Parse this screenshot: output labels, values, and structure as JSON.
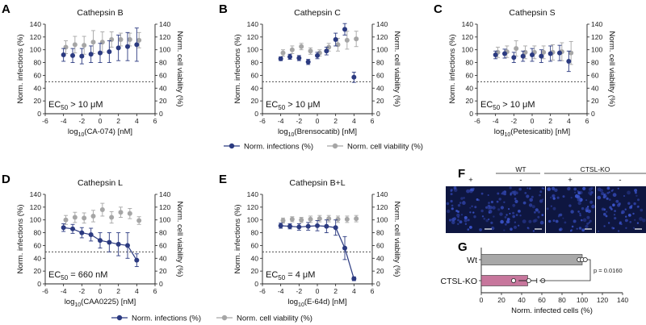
{
  "colors": {
    "infections": "#2b3a80",
    "viability": "#a6a6a6",
    "ko_bar": "#c7769c",
    "wt_bar": "#a8a8a8",
    "micro_blue": "#2c3d9c",
    "micro_bg": "#0b1030"
  },
  "legend": {
    "infections_label": "Norm. infections (%)",
    "viability_label": "Norm. cell viability (%)"
  },
  "chart_data": [
    {
      "id": "A",
      "letter": "A",
      "type": "scatter",
      "title": "Cathepsin B",
      "xlabel": "log10(CA-074) [nM]",
      "xlabel_pre": "log",
      "xlabel_sub": "10",
      "xlabel_post": "(CA-074) [nM]",
      "ylabel_left": "Norm. infections (%)",
      "ylabel_right": "Norm. cell viability (%)",
      "xlim": [
        -6,
        6
      ],
      "xticks": [
        -6,
        -4,
        -2,
        0,
        2,
        4,
        6
      ],
      "ylim": [
        0,
        140
      ],
      "yticks": [
        0,
        20,
        40,
        60,
        80,
        100,
        120,
        140
      ],
      "threshold": 50,
      "ec50_pre": "EC",
      "ec50_sub": "50",
      "ec50_post": " > 10 μM",
      "fit": false,
      "x": [
        -4,
        -3,
        -2,
        -1,
        0,
        1,
        2,
        3,
        4
      ],
      "series": [
        {
          "name": "Norm. infections (%)",
          "values": [
            92,
            91,
            90,
            93,
            95,
            97,
            103,
            105,
            108
          ],
          "errors": [
            10,
            11,
            12,
            13,
            15,
            17,
            20,
            22,
            26
          ]
        },
        {
          "name": "Norm. cell viability (%)",
          "values": [
            104,
            108,
            107,
            112,
            112,
            116,
            116,
            116,
            115
          ],
          "errors": [
            10,
            13,
            14,
            18,
            16,
            12,
            10,
            10,
            12
          ]
        }
      ]
    },
    {
      "id": "B",
      "letter": "B",
      "type": "scatter",
      "title": "Cathepsin C",
      "xlabel": "log10(Brensocatib) [nM]",
      "xlabel_pre": "log",
      "xlabel_sub": "10",
      "xlabel_post": "(Brensocatib) [nM]",
      "ylabel_left": "Norm. infections (%)",
      "ylabel_right": "Norm. cell viability (%)",
      "xlim": [
        -6,
        6
      ],
      "xticks": [
        -6,
        -4,
        -2,
        0,
        2,
        4,
        6
      ],
      "ylim": [
        0,
        140
      ],
      "yticks": [
        0,
        20,
        40,
        60,
        80,
        100,
        120,
        140
      ],
      "threshold": 50,
      "ec50_pre": "EC",
      "ec50_sub": "50",
      "ec50_post": " > 10 μM",
      "fit": false,
      "x": [
        -4,
        -3,
        -2,
        -1,
        0,
        1,
        2,
        3,
        4
      ],
      "series": [
        {
          "name": "Norm. infections (%)",
          "values": [
            86,
            89,
            87,
            81,
            91,
            98,
            116,
            132,
            57
          ],
          "errors": [
            3,
            4,
            4,
            4,
            5,
            6,
            10,
            9,
            8
          ]
        },
        {
          "name": "Norm. cell viability (%)",
          "values": [
            95,
            100,
            105,
            98,
            95,
            104,
            108,
            115,
            117
          ],
          "errors": [
            5,
            6,
            5,
            5,
            5,
            6,
            10,
            14,
            12
          ]
        }
      ]
    },
    {
      "id": "C",
      "letter": "C",
      "type": "scatter",
      "title": "Cathepsin S",
      "xlabel": "log10(Petesicatib) [nM]",
      "xlabel_pre": "log",
      "xlabel_sub": "10",
      "xlabel_post": "(Petesicatib) [nM]",
      "ylabel_left": "Norm. infections (%)",
      "ylabel_right": "Norm. cell viability (%)",
      "xlim": [
        -6,
        6
      ],
      "xticks": [
        -6,
        -4,
        -2,
        0,
        2,
        4,
        6
      ],
      "ylim": [
        0,
        140
      ],
      "yticks": [
        0,
        20,
        40,
        60,
        80,
        100,
        120,
        140
      ],
      "threshold": 50,
      "ec50_pre": "EC",
      "ec50_sub": "50",
      "ec50_post": " > 10 μM",
      "fit": false,
      "x": [
        -4,
        -3,
        -2,
        -1,
        0,
        1,
        2,
        3,
        4
      ],
      "series": [
        {
          "name": "Norm. infections (%)",
          "values": [
            92,
            94,
            88,
            90,
            92,
            90,
            94,
            95,
            82
          ],
          "errors": [
            6,
            7,
            8,
            8,
            10,
            10,
            12,
            12,
            16
          ]
        },
        {
          "name": "Norm. cell viability (%)",
          "values": [
            96,
            97,
            102,
            96,
            96,
            96,
            96,
            97,
            95
          ],
          "errors": [
            8,
            9,
            12,
            10,
            10,
            10,
            12,
            14,
            18
          ]
        }
      ]
    },
    {
      "id": "D",
      "letter": "D",
      "type": "line",
      "title": "Cathepsin L",
      "xlabel": "log10(CAA0225) [nM]",
      "xlabel_pre": "log",
      "xlabel_sub": "10",
      "xlabel_post": "(CAA0225) [nM]",
      "ylabel_left": "Norm. infections (%)",
      "ylabel_right": "Norm. cell viability (%)",
      "xlim": [
        -6,
        6
      ],
      "xticks": [
        -6,
        -4,
        -2,
        0,
        2,
        4,
        6
      ],
      "ylim": [
        0,
        140
      ],
      "yticks": [
        0,
        20,
        40,
        60,
        80,
        100,
        120,
        140
      ],
      "threshold": 50,
      "ec50_pre": "EC",
      "ec50_sub": "50",
      "ec50_post": " = 660 nM",
      "fit": true,
      "x": [
        -4,
        -3,
        -2,
        -1,
        0,
        1,
        2,
        3,
        4
      ],
      "series": [
        {
          "name": "Norm. infections (%)",
          "values": [
            88,
            86,
            80,
            77,
            68,
            65,
            62,
            60,
            37
          ],
          "errors": [
            6,
            7,
            8,
            10,
            12,
            15,
            18,
            20,
            10
          ]
        },
        {
          "name": "Norm. cell viability (%)",
          "values": [
            100,
            104,
            103,
            106,
            116,
            104,
            112,
            110,
            99
          ],
          "errors": [
            7,
            8,
            8,
            9,
            10,
            9,
            8,
            8,
            6
          ]
        }
      ]
    },
    {
      "id": "E",
      "letter": "E",
      "type": "line",
      "title": "Cathepsin B+L",
      "xlabel": "log10(E-64d) [nM]",
      "xlabel_pre": "log",
      "xlabel_sub": "10",
      "xlabel_post": "(E-64d) [nM]",
      "ylabel_left": "Norm. infections (%)",
      "ylabel_right": "Norm. cell viability (%)",
      "xlim": [
        -6,
        6
      ],
      "xticks": [
        -6,
        -4,
        -2,
        0,
        2,
        4,
        6
      ],
      "ylim": [
        0,
        140
      ],
      "yticks": [
        0,
        20,
        40,
        60,
        80,
        100,
        120,
        140
      ],
      "threshold": 50,
      "ec50_pre": "EC",
      "ec50_sub": "50",
      "ec50_post": " = 4 μM",
      "fit": true,
      "x": [
        -4,
        -3,
        -2,
        -1,
        0,
        1,
        2,
        3,
        4
      ],
      "series": [
        {
          "name": "Norm. infections (%)",
          "values": [
            91,
            90,
            89,
            90,
            91,
            90,
            88,
            56,
            8
          ],
          "errors": [
            4,
            4,
            5,
            6,
            8,
            10,
            12,
            18,
            3
          ]
        },
        {
          "name": "Norm. cell viability (%)",
          "values": [
            99,
            101,
            100,
            101,
            102,
            102,
            101,
            101,
            102
          ],
          "errors": [
            4,
            4,
            4,
            5,
            5,
            5,
            5,
            5,
            5
          ]
        }
      ]
    },
    {
      "id": "G",
      "letter": "G",
      "type": "bar",
      "categories": [
        "Wt",
        "CTSL-KO"
      ],
      "values": [
        100,
        46
      ],
      "errors": [
        3,
        9
      ],
      "points": [
        [
          97,
          100,
          103
        ],
        [
          32,
          47,
          61
        ]
      ],
      "xlabel": "Norm. infected cells (%)",
      "xlim": [
        0,
        140
      ],
      "xticks": [
        0,
        20,
        40,
        60,
        80,
        100,
        120,
        140
      ],
      "pvalue": "p = 0.0160"
    }
  ],
  "micrographs": {
    "letter": "F",
    "groups": [
      {
        "label": "WT",
        "signs": [
          "+",
          "-"
        ]
      },
      {
        "label": "CTSL-KO",
        "signs": [
          "+",
          "-"
        ]
      }
    ]
  }
}
